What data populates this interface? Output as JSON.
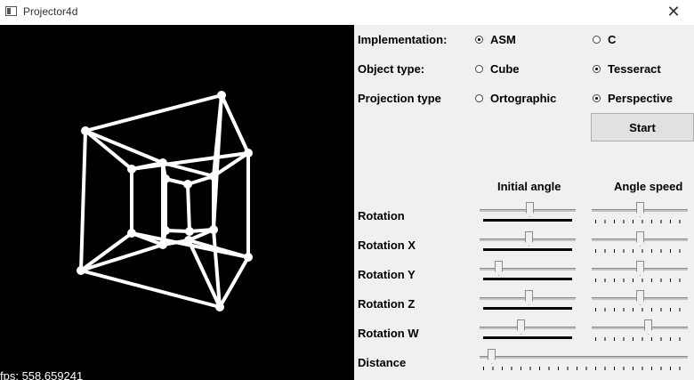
{
  "window": {
    "title": "Projector4d",
    "close_glyph": "✕"
  },
  "viewport": {
    "fps_text": "fps: 558.659241",
    "background": "#000000",
    "wire_color": "#ffffff"
  },
  "controls": {
    "implementation": {
      "label": "Implementation:",
      "options": [
        "ASM",
        "C"
      ],
      "selected": "ASM"
    },
    "object_type": {
      "label": "Object type:",
      "options": [
        "Cube",
        "Tesseract"
      ],
      "selected": "Tesseract"
    },
    "projection_type": {
      "label": "Projection type",
      "options": [
        "Ortographic",
        "Perspective"
      ],
      "selected": "Perspective"
    },
    "start_label": "Start",
    "headers": {
      "initial_angle": "Initial angle",
      "angle_speed": "Angle speed"
    },
    "rotation_labels": [
      "Rotation",
      "Rotation X",
      "Rotation Y",
      "Rotation Z",
      "Rotation W"
    ],
    "initial_angle_values": [
      0.53,
      0.52,
      0.17,
      0.52,
      0.42
    ],
    "angle_speed_values": [
      0.5,
      0.5,
      0.5,
      0.5,
      0.6
    ],
    "distance_label": "Distance",
    "distance_value": 0.04
  }
}
